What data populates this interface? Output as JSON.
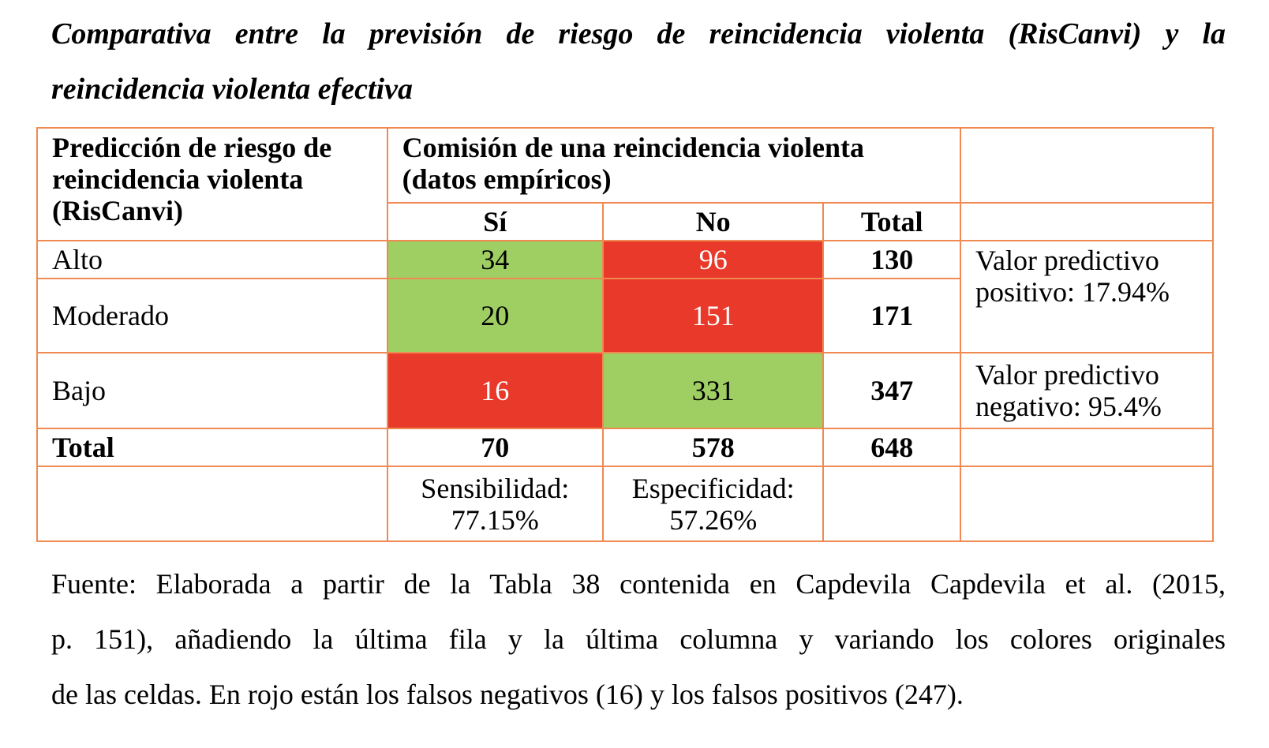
{
  "title": {
    "line1": "Comparativa entre la previsión de riesgo de reincidencia violenta (RisCanvi) y la",
    "line2": "reincidencia violenta efectiva"
  },
  "table": {
    "corner_header": "Predicción de riesgo de reincidencia violenta (RisCanvi)",
    "group_header": "Comisión de una reincidencia violenta (datos empíricos)",
    "col_headers": [
      "Sí",
      "No",
      "Total"
    ],
    "rows": [
      {
        "label": "Alto",
        "si": "34",
        "no": "96",
        "total": "130"
      },
      {
        "label": "Moderado",
        "si": "20",
        "no": "151",
        "total": "171"
      },
      {
        "label": "Bajo",
        "si": "16",
        "no": "331",
        "total": "347"
      }
    ],
    "vpp": "Valor predictivo positivo: 17.94%",
    "vpn": "Valor predictivo negativo: 95.4%",
    "total_row": {
      "label": "Total",
      "si": "70",
      "no": "578",
      "total": "648"
    },
    "sensibilidad": "Sensibilidad: 77.15%",
    "especificidad": "Especificidad: 57.26%"
  },
  "colors": {
    "green": "#9fce63",
    "red": "#e8392b",
    "border": "#ef8a52"
  },
  "source": {
    "line1": "Fuente: Elaborada a partir de la Tabla 38 contenida en Capdevila Capdevila et al. (2015,",
    "line2": "p. 151), añadiendo la última fila y la última columna y variando los colores originales",
    "line3": "de las celdas. En rojo están los falsos negativos (16) y los falsos positivos (247)."
  }
}
